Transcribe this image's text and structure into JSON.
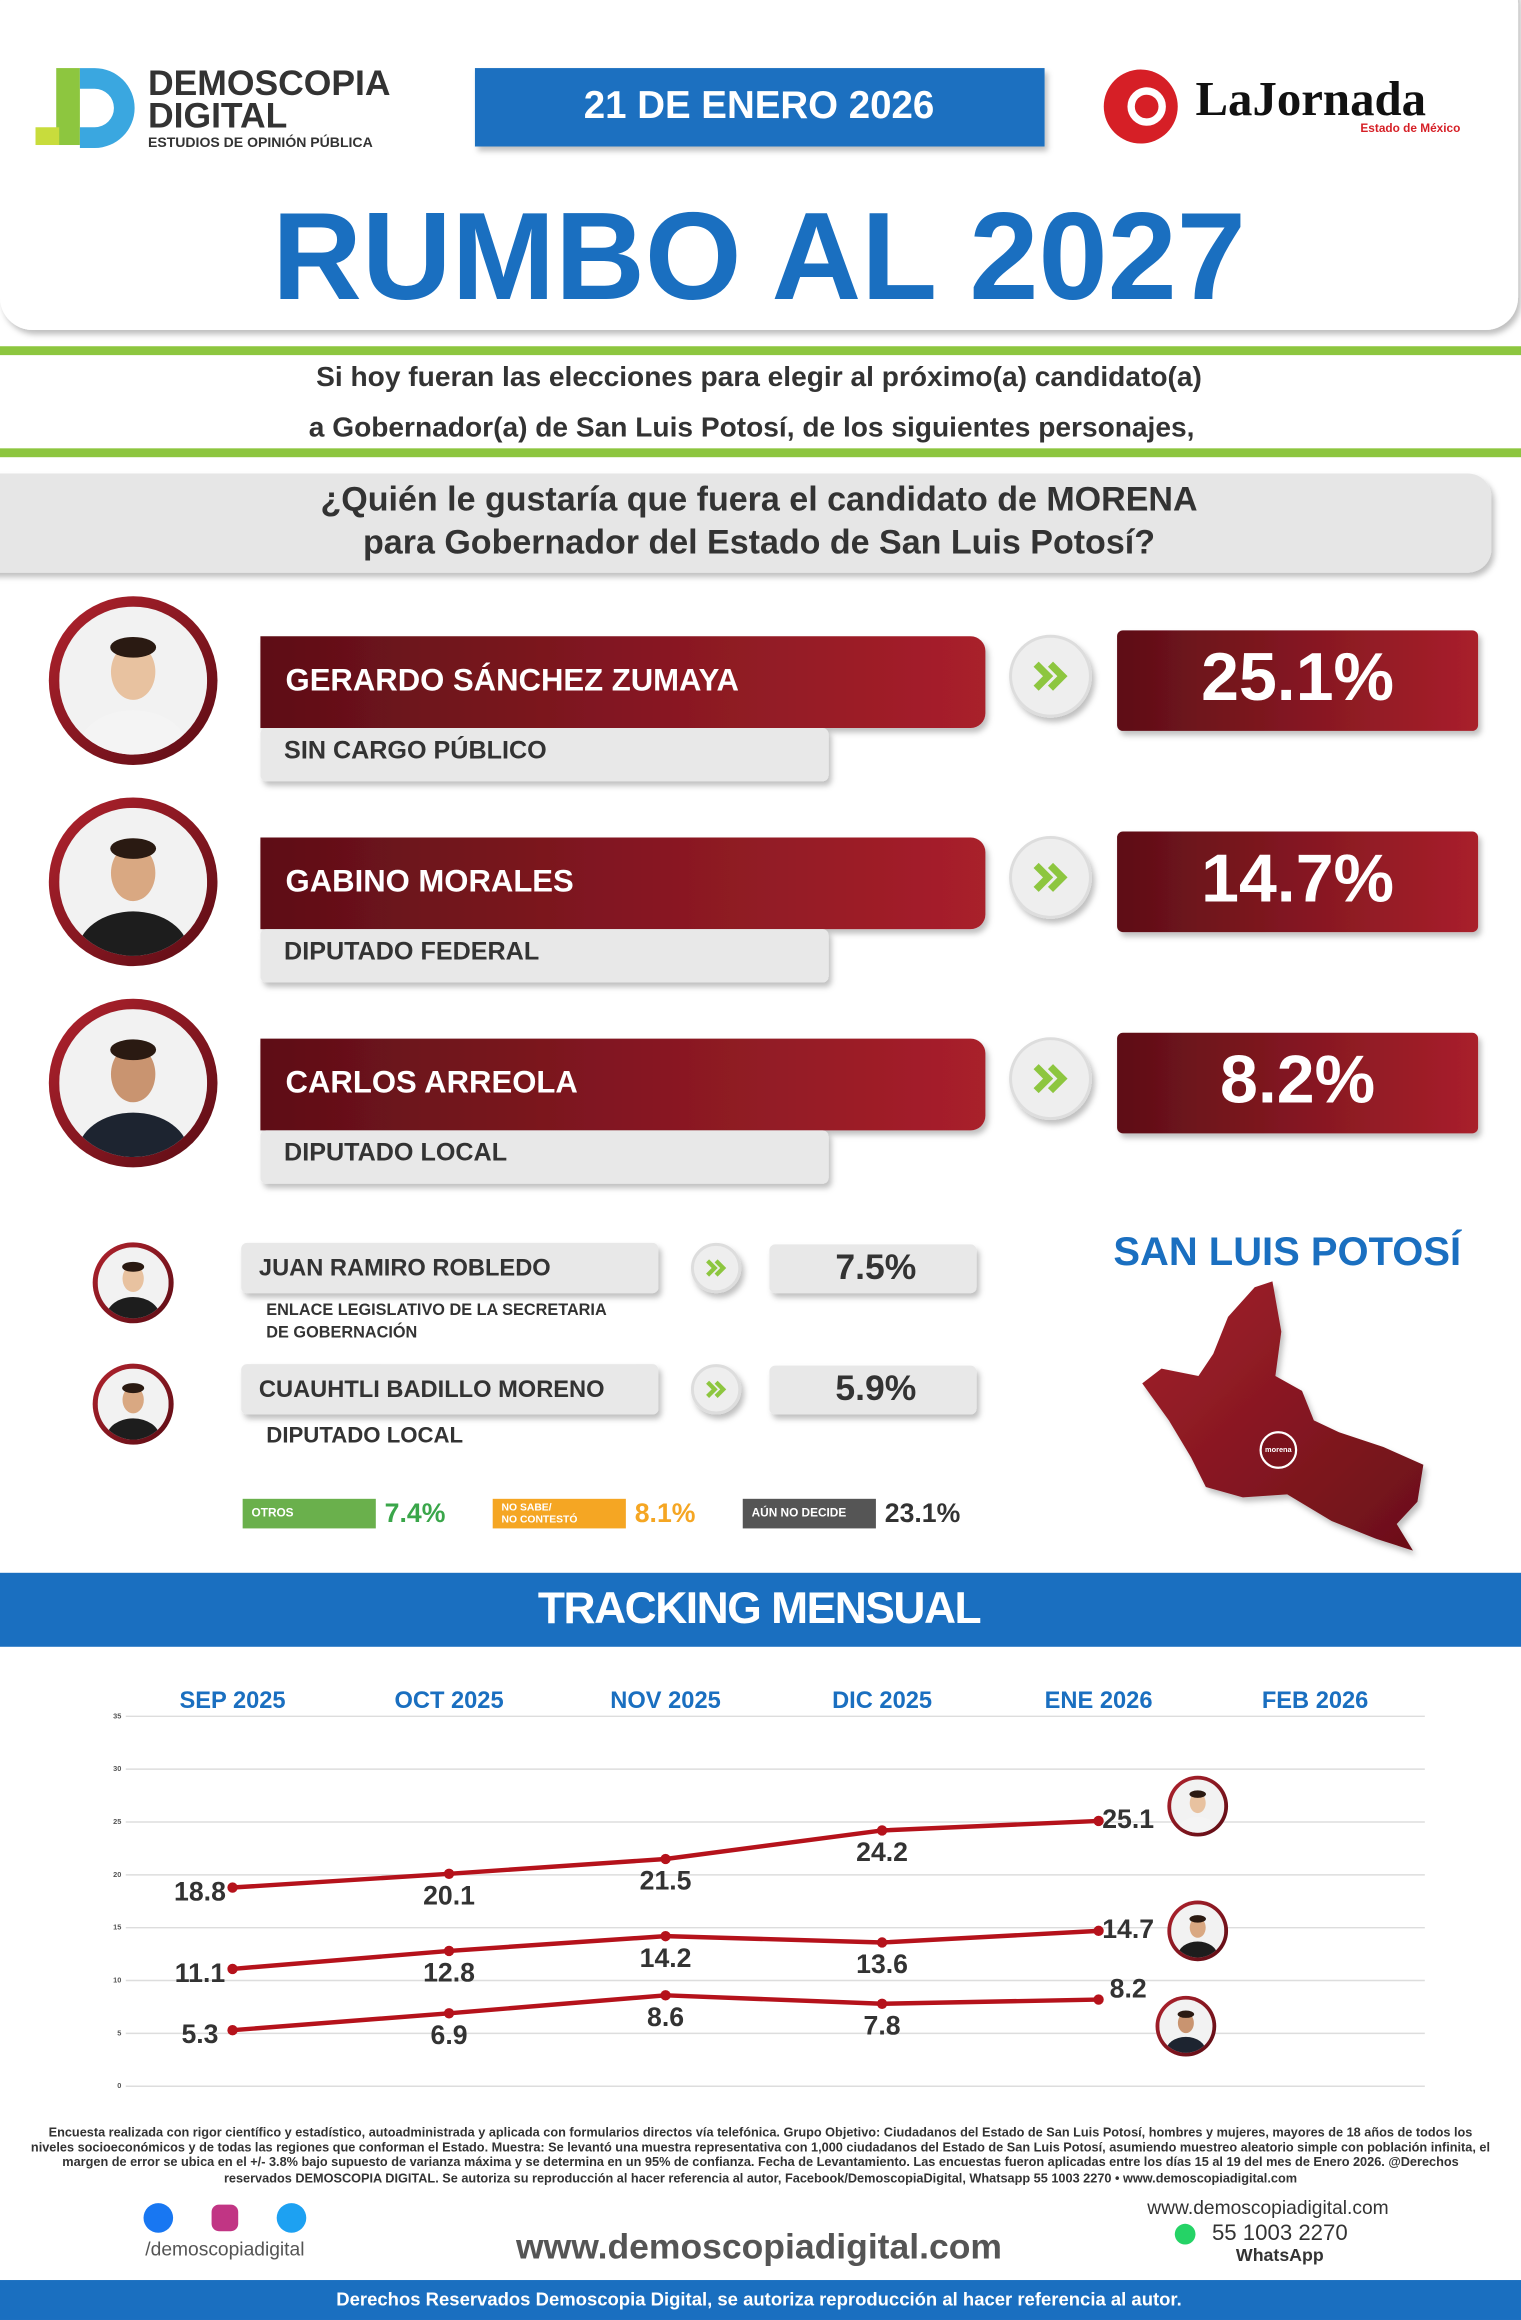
{
  "header": {
    "brand": [
      "DEMOSCOPIA",
      "DIGITAL"
    ],
    "brand_tagline": "ESTUDIOS DE OPINIÓN PÚBLICA",
    "date": "21 DE ENERO 2026",
    "partner": "LaJornada",
    "partner_region": "Estado de México",
    "title": "RUMBO AL 2027"
  },
  "intro": [
    "Si hoy fueran las elecciones para elegir al próximo(a) candidato(a)",
    "a Gobernador(a) de San Luis Potosí, de los siguientes personajes,"
  ],
  "question": [
    "¿Quién le gustaría que fuera el candidato de MORENA",
    "para Gobernador del Estado de San Luis Potosí?"
  ],
  "candidates": [
    {
      "name": "GERARDO SÁNCHEZ ZUMAYA",
      "role": "SIN CARGO PÚBLICO",
      "value": "25.1%"
    },
    {
      "name": "GABINO MORALES",
      "role": "DIPUTADO FEDERAL",
      "value": "14.7%"
    },
    {
      "name": "CARLOS ARREOLA",
      "role": "DIPUTADO LOCAL",
      "value": "8.2%"
    }
  ],
  "minor_candidates": [
    {
      "name": "JUAN RAMIRO ROBLEDO",
      "role": [
        "ENLACE LEGISLATIVO DE LA SECRETARIA",
        "DE GOBERNACIÓN"
      ],
      "value": "7.5%"
    },
    {
      "name": "CUAUHTLI BADILLO MORENO",
      "role": [
        "DIPUTADO LOCAL"
      ],
      "value": "5.9%"
    }
  ],
  "others": [
    {
      "label": [
        "OTROS"
      ],
      "value": "7.4%"
    },
    {
      "label": [
        "NO SABE/",
        "NO CONTESTÓ"
      ],
      "value": "8.1%"
    },
    {
      "label": [
        "AÚN NO DECIDE"
      ],
      "value": "23.1%"
    }
  ],
  "map": {
    "title": "SAN LUIS POTOSÍ",
    "badge": "morena"
  },
  "chart_data": {
    "type": "line",
    "title": "TRACKING MENSUAL",
    "categories": [
      "SEP 2025",
      "OCT 2025",
      "NOV 2025",
      "DIC 2025",
      "ENE 2026",
      "FEB 2026"
    ],
    "series": [
      {
        "color": "#b5121b",
        "values": [
          18.8,
          20.1,
          21.5,
          24.2,
          25.1,
          null
        ]
      },
      {
        "color": "#b5121b",
        "values": [
          11.1,
          12.8,
          14.2,
          13.6,
          14.7,
          null
        ]
      },
      {
        "color": "#b5121b",
        "values": [
          5.3,
          6.9,
          8.6,
          7.8,
          8.2,
          null
        ]
      }
    ],
    "ylim": [
      0,
      35
    ],
    "yticks": [
      0,
      5,
      10,
      15,
      20,
      25,
      30,
      35
    ],
    "grid": true
  },
  "footer": {
    "note": "Encuesta realizada con rigor científico y estadístico, autoadministrada y aplicada con formularios directos vía telefónica. Grupo Objetivo: Ciudadanos del Estado de San Luis Potosí, hombres y mujeres, mayores de 18 años de todos los niveles socioeconómicos y de todas las regiones que conforman el Estado. Muestra: Se levantó una muestra representativa con 1,000 ciudadanos del Estado de San Luis Potosí, asumiendo muestreo aleatorio simple con población infinita, el margen de error se ubica en el +/- 3.8% bajo supuesto de varianza máxima y se determina en un 95% de confianza. Fecha de Levantamiento. Las encuestas fueron aplicadas entre los días 15 al 19 del mes de Enero 2026. @Derechos reservados DEMOSCOPIA DIGITAL. Se autoriza su reproducción al hacer referencia al autor, Facebook/DemoscopiaDigital, Whatsapp 55 1003 2270 • www.demoscopiadigital.com",
    "social": "/demoscopiadigital",
    "website": "www.demoscopiadigital.com",
    "phone": "55 1003 2270",
    "whatsapp": "WhatsApp",
    "rights": "Derechos Reservados Demoscopia Digital, se autoriza reproducción al hacer referencia al autor."
  }
}
